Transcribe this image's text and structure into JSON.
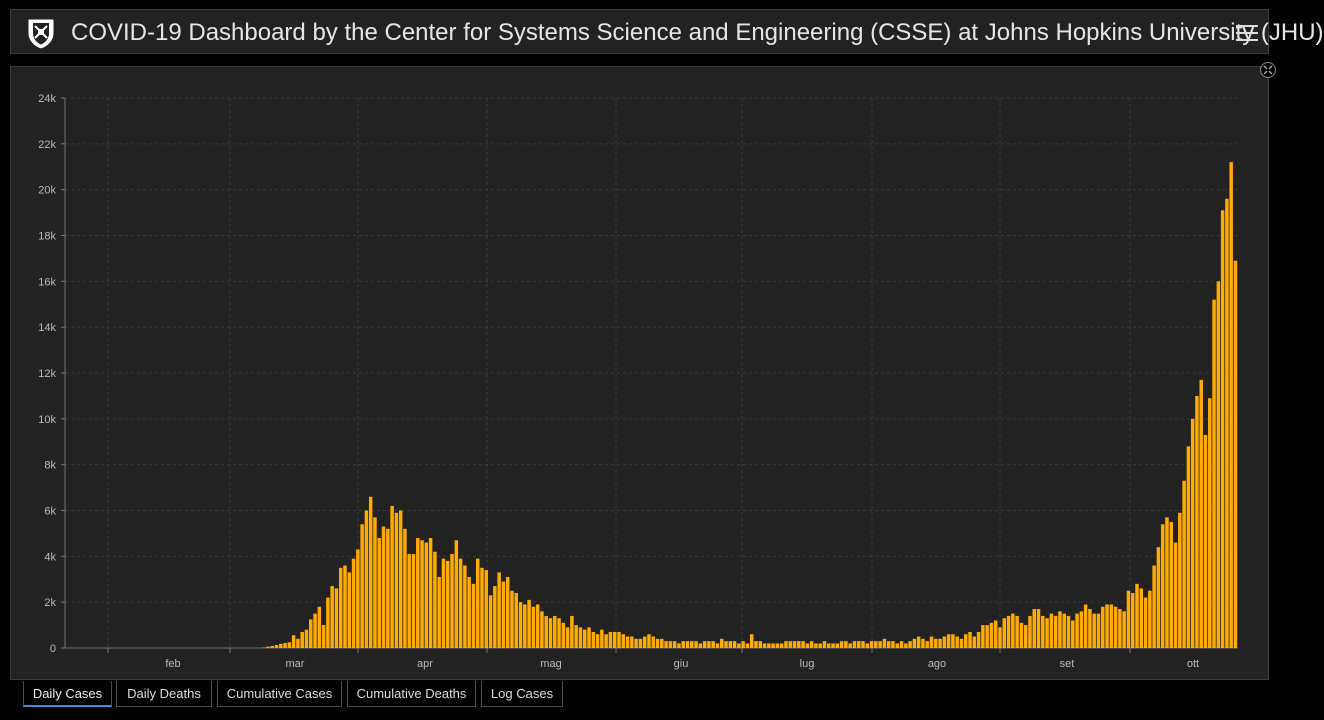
{
  "header": {
    "title": "COVID-19 Dashboard by the Center for Systems Science and Engineering (CSSE) at Johns Hopkins University (JHU)"
  },
  "tabs": [
    {
      "label": "Daily Cases",
      "active": true
    },
    {
      "label": "Daily Deaths",
      "active": false
    },
    {
      "label": "Cumulative Cases",
      "active": false
    },
    {
      "label": "Cumulative Deaths",
      "active": false
    },
    {
      "label": "Log Cases",
      "active": false
    }
  ],
  "colors": {
    "bar": "#ffab00",
    "background": "#222222",
    "grid": "#3a3a3a",
    "text": "#bbbbbb"
  },
  "chart_data": {
    "type": "bar",
    "title": "",
    "xlabel": "",
    "ylabel": "",
    "ylim": [
      0,
      24000
    ],
    "y_ticks": [
      "0",
      "2k",
      "4k",
      "6k",
      "8k",
      "10k",
      "12k",
      "14k",
      "16k",
      "18k",
      "20k",
      "22k",
      "24k"
    ],
    "x_ticks": [
      "feb",
      "mar",
      "apr",
      "mag",
      "giu",
      "lug",
      "ago",
      "set",
      "ott"
    ],
    "grid": true,
    "series": [
      {
        "values": [
          0,
          0,
          0,
          0,
          0,
          0,
          0,
          0,
          0,
          0,
          0,
          0,
          0,
          0,
          0,
          0,
          0,
          0,
          0,
          0,
          0,
          0,
          0,
          0,
          0,
          0,
          0,
          0,
          0,
          0,
          0,
          0,
          0,
          0,
          0,
          0,
          0,
          0,
          0,
          0,
          0,
          0,
          0,
          0,
          0,
          0,
          20,
          60,
          90,
          130,
          180,
          220,
          250,
          560,
          400,
          700,
          800,
          1250,
          1500,
          1800,
          1000,
          2200,
          2700,
          2600,
          3500,
          3600,
          3300,
          3900,
          4300,
          5400,
          6000,
          6600,
          5700,
          4800,
          5300,
          5200,
          6200,
          5900,
          6000,
          5200,
          4100,
          4100,
          4800,
          4700,
          4600,
          4800,
          4200,
          3100,
          3900,
          3800,
          4100,
          4700,
          3900,
          3600,
          3100,
          2800,
          3900,
          3500,
          3400,
          2300,
          2700,
          3300,
          2900,
          3100,
          2500,
          2400,
          2000,
          1900,
          2100,
          1800,
          1900,
          1600,
          1400,
          1300,
          1400,
          1300,
          1100,
          900,
          1400,
          1000,
          900,
          800,
          900,
          700,
          600,
          800,
          600,
          700,
          700,
          700,
          600,
          500,
          500,
          400,
          400,
          500,
          600,
          500,
          400,
          400,
          300,
          300,
          300,
          200,
          300,
          300,
          300,
          300,
          200,
          300,
          300,
          300,
          200,
          400,
          300,
          300,
          300,
          200,
          300,
          200,
          600,
          300,
          300,
          200,
          200,
          200,
          200,
          200,
          300,
          300,
          300,
          300,
          300,
          200,
          300,
          200,
          200,
          300,
          200,
          200,
          200,
          300,
          300,
          200,
          300,
          300,
          300,
          200,
          300,
          300,
          300,
          400,
          300,
          300,
          200,
          300,
          200,
          300,
          400,
          500,
          400,
          300,
          500,
          400,
          400,
          500,
          600,
          600,
          500,
          400,
          600,
          700,
          500,
          700,
          1000,
          1000,
          1100,
          1200,
          900,
          1300,
          1400,
          1500,
          1400,
          1100,
          1000,
          1400,
          1700,
          1700,
          1400,
          1300,
          1500,
          1400,
          1600,
          1500,
          1400,
          1200,
          1500,
          1600,
          1900,
          1700,
          1500,
          1500,
          1800,
          1900,
          1900,
          1800,
          1700,
          1600,
          2500,
          2400,
          2800,
          2600,
          2200,
          2500,
          3600,
          4400,
          5400,
          5700,
          5500,
          4600,
          5900,
          7300,
          8800,
          10000,
          11000,
          11700,
          9300,
          10900,
          15200,
          16000,
          19100,
          19600,
          21200,
          16900
        ]
      }
    ]
  }
}
